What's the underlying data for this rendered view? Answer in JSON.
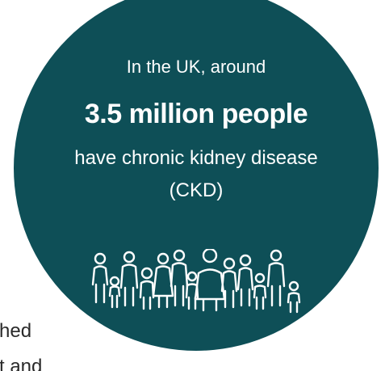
{
  "infographic": {
    "intro": "In the UK, around",
    "headline": "3.5 million people",
    "detail": "have chronic kidney disease",
    "abbreviation": "(CKD)",
    "people_icon": "group-of-people-icon"
  },
  "background_text": {
    "line1": "hed",
    "line2": "t and"
  },
  "colors": {
    "circle": "#0e4f57",
    "text_on_circle": "#ffffff",
    "body_text": "#2a2a2a"
  }
}
